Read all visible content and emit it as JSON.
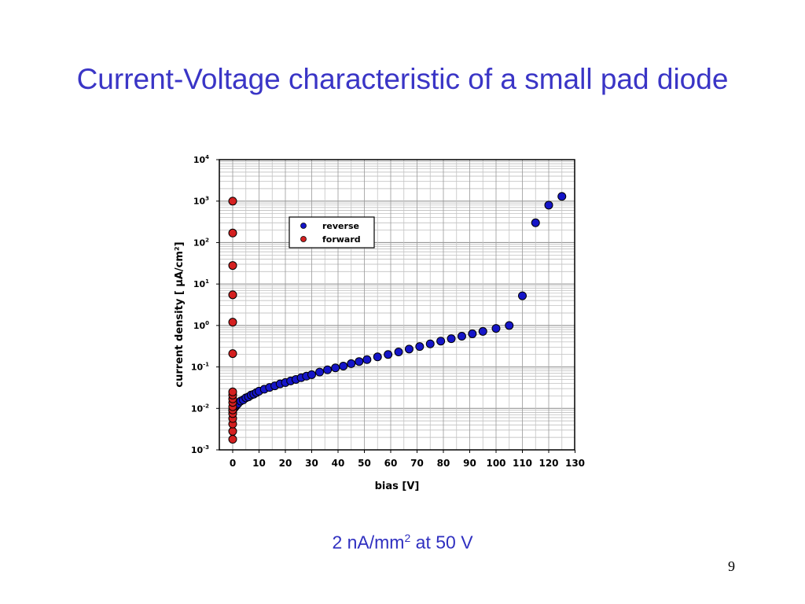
{
  "slide": {
    "title": "Current-Voltage characteristic of a small pad diode",
    "caption_main": "2 nA/mm",
    "caption_sup": "2",
    "caption_tail": " at 50 V",
    "page_number": "9",
    "colors": {
      "title": "#3a35c6",
      "reverse": "#1515c8",
      "forward": "#d42020"
    }
  },
  "chart_data": {
    "type": "scatter",
    "xlabel": "bias [V]",
    "ylabel": "current density [ μA/cm²]",
    "xlim": [
      -5,
      130
    ],
    "ylim": [
      0.001,
      10000
    ],
    "yscale": "log",
    "grid": true,
    "legend_position": "top-center",
    "x_ticks": [
      "0",
      "10",
      "20",
      "30",
      "40",
      "50",
      "60",
      "70",
      "80",
      "90",
      "100",
      "110",
      "120",
      "130"
    ],
    "y_ticks": [
      {
        "base": "10",
        "exp": "4"
      },
      {
        "base": "10",
        "exp": "3"
      },
      {
        "base": "10",
        "exp": "2"
      },
      {
        "base": "10",
        "exp": "1"
      },
      {
        "base": "10",
        "exp": "0"
      },
      {
        "base": "10",
        "exp": "-1"
      },
      {
        "base": "10",
        "exp": "-2"
      },
      {
        "base": "10",
        "exp": "-3"
      }
    ],
    "series": [
      {
        "name": "reverse",
        "color": "#1515c8",
        "x": [
          0,
          0.5,
          1,
          1.5,
          2,
          3,
          4,
          5,
          6,
          7,
          8,
          9,
          10,
          12,
          14,
          16,
          18,
          20,
          22,
          24,
          26,
          28,
          30,
          33,
          36,
          39,
          42,
          45,
          48,
          51,
          55,
          59,
          63,
          67,
          71,
          75,
          79,
          83,
          87,
          91,
          95,
          100,
          105,
          110,
          115,
          120,
          125
        ],
        "y": [
          0.009,
          0.01,
          0.011,
          0.012,
          0.013,
          0.015,
          0.016,
          0.018,
          0.019,
          0.021,
          0.022,
          0.024,
          0.026,
          0.029,
          0.032,
          0.035,
          0.039,
          0.042,
          0.046,
          0.05,
          0.055,
          0.06,
          0.065,
          0.075,
          0.085,
          0.095,
          0.105,
          0.12,
          0.135,
          0.15,
          0.175,
          0.2,
          0.23,
          0.27,
          0.31,
          0.36,
          0.42,
          0.48,
          0.55,
          0.63,
          0.72,
          0.85,
          1.0,
          5.2,
          300,
          800,
          1300
        ]
      },
      {
        "name": "forward",
        "color": "#d42020",
        "x": [
          0,
          0,
          0,
          0,
          0,
          0,
          0,
          0,
          0,
          0,
          0,
          0,
          0,
          0,
          0,
          0,
          0
        ],
        "y": [
          0.0018,
          0.0028,
          0.0042,
          0.0057,
          0.0075,
          0.0092,
          0.011,
          0.014,
          0.017,
          0.021,
          0.025,
          0.21,
          1.2,
          5.5,
          28,
          170,
          1000
        ]
      }
    ]
  }
}
